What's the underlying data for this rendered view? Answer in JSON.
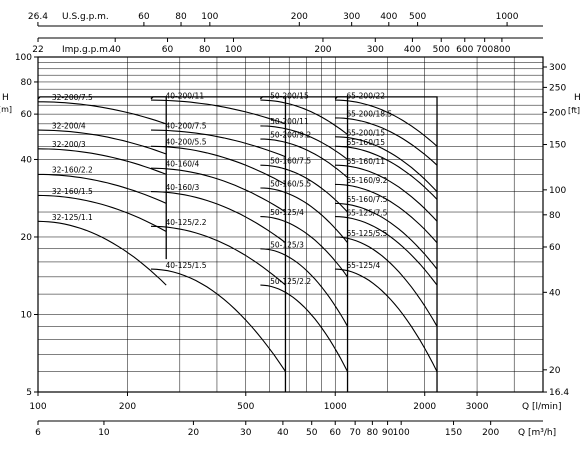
{
  "chart_data": {
    "type": "line",
    "x_scale": "log",
    "y_scale": "log",
    "xlim": [
      100,
      5000
    ],
    "ylim": [
      5,
      100
    ],
    "left_axis": {
      "label": "H [m]",
      "ticks": [
        {
          "v": 100,
          "label": "100"
        },
        {
          "v": 80,
          "label": "80"
        },
        {
          "v": 60,
          "label": "60"
        },
        {
          "v": 40,
          "label": "40"
        },
        {
          "v": 20,
          "label": "20"
        },
        {
          "v": 10,
          "label": "10"
        },
        {
          "v": 5,
          "label": "5"
        }
      ]
    },
    "right_axis": {
      "label": "H [ft]",
      "ticks": [
        {
          "v": 300,
          "label": "300"
        },
        {
          "v": 250,
          "label": "250"
        },
        {
          "v": 200,
          "label": "200"
        },
        {
          "v": 150,
          "label": "150"
        },
        {
          "v": 100,
          "label": "100"
        },
        {
          "v": 80,
          "label": "80"
        },
        {
          "v": 60,
          "label": "60"
        },
        {
          "v": 40,
          "label": "40"
        },
        {
          "v": 20,
          "label": "20"
        },
        {
          "v": 16.4,
          "label": "16.4"
        }
      ]
    },
    "x_axis_lmin": {
      "label": "Q [l/min]",
      "ticks": [
        {
          "v": 100,
          "label": "100"
        },
        {
          "v": 200,
          "label": "200"
        },
        {
          "v": 500,
          "label": "500"
        },
        {
          "v": 1000,
          "label": "1000"
        },
        {
          "v": 2000,
          "label": "2000"
        },
        {
          "v": 3000,
          "label": "3000"
        }
      ]
    },
    "x_axis_m3h": {
      "label": "Q [m³/h]",
      "ticks": [
        {
          "v": 6,
          "label": "6"
        },
        {
          "v": 10,
          "label": "10"
        },
        {
          "v": 20,
          "label": "20"
        },
        {
          "v": 30,
          "label": "30"
        },
        {
          "v": 40,
          "label": "40"
        },
        {
          "v": 50,
          "label": "50"
        },
        {
          "v": 60,
          "label": "60"
        },
        {
          "v": 70,
          "label": "70"
        },
        {
          "v": 80,
          "label": "80"
        },
        {
          "v": 90,
          "label": "90"
        },
        {
          "v": 100,
          "label": "100"
        },
        {
          "v": 150,
          "label": "150"
        },
        {
          "v": 200,
          "label": "200"
        }
      ]
    },
    "x_axis_usgpm": {
      "label": "U.S.g.p.m.",
      "ticks": [
        {
          "v": 26.4,
          "label": "26.4"
        },
        {
          "v": 60,
          "label": "60"
        },
        {
          "v": 80,
          "label": "80"
        },
        {
          "v": 100,
          "label": "100"
        },
        {
          "v": 200,
          "label": "200"
        },
        {
          "v": 300,
          "label": "300"
        },
        {
          "v": 400,
          "label": "400"
        },
        {
          "v": 500,
          "label": "500"
        },
        {
          "v": 1000,
          "label": "1000"
        }
      ]
    },
    "x_axis_impgpm": {
      "label": "Imp.g.p.m.",
      "ticks": [
        {
          "v": 22,
          "label": "22"
        },
        {
          "v": 40,
          "label": "40"
        },
        {
          "v": 60,
          "label": "60"
        },
        {
          "v": 80,
          "label": "80"
        },
        {
          "v": 100,
          "label": "100"
        },
        {
          "v": 200,
          "label": "200"
        },
        {
          "v": 300,
          "label": "300"
        },
        {
          "v": 400,
          "label": "400"
        },
        {
          "v": 500,
          "label": "500"
        },
        {
          "v": 600,
          "label": "600"
        },
        {
          "v": 700,
          "label": "700"
        },
        {
          "v": 800,
          "label": "800"
        }
      ]
    },
    "grid": true,
    "family_boxes": [
      {
        "q_min": 100,
        "q_max": 270,
        "h_bottom": 16.4,
        "h_top": 70
      },
      {
        "q_min": 240,
        "q_max": 680,
        "h_bottom": 5,
        "h_top": 70
      },
      {
        "q_min": 560,
        "q_max": 1100,
        "h_bottom": 5,
        "h_top": 70
      },
      {
        "q_min": 1000,
        "q_max": 2200,
        "h_bottom": 5,
        "h_top": 70
      }
    ],
    "series": [
      {
        "name": "32-200/7.5",
        "x": [
          100,
          270
        ],
        "y": [
          67,
          55
        ]
      },
      {
        "name": "32-200/4",
        "x": [
          100,
          270
        ],
        "y": [
          52,
          42
        ]
      },
      {
        "name": "32-200/3",
        "x": [
          100,
          270
        ],
        "y": [
          44,
          35
        ]
      },
      {
        "name": "32-160/2.2",
        "x": [
          100,
          270
        ],
        "y": [
          35,
          27
        ]
      },
      {
        "name": "32-160/1.5",
        "x": [
          100,
          270
        ],
        "y": [
          29,
          21
        ]
      },
      {
        "name": "32-125/1.1",
        "x": [
          100,
          270
        ],
        "y": [
          23,
          13
        ]
      },
      {
        "name": "40-200/11",
        "x": [
          240,
          680
        ],
        "y": [
          68,
          55
        ]
      },
      {
        "name": "40-200/7.5",
        "x": [
          240,
          680
        ],
        "y": [
          52,
          41
        ]
      },
      {
        "name": "40-200/5.5",
        "x": [
          240,
          680
        ],
        "y": [
          45,
          32
        ]
      },
      {
        "name": "40-160/4",
        "x": [
          240,
          680
        ],
        "y": [
          37,
          25
        ]
      },
      {
        "name": "40-160/3",
        "x": [
          240,
          680
        ],
        "y": [
          30,
          19
        ]
      },
      {
        "name": "40-125/2.2",
        "x": [
          240,
          680
        ],
        "y": [
          22,
          13
        ]
      },
      {
        "name": "40-125/1.5",
        "x": [
          240,
          680
        ],
        "y": [
          15,
          6
        ]
      },
      {
        "name": "50-200/15",
        "x": [
          560,
          1100
        ],
        "y": [
          68,
          50
        ]
      },
      {
        "name": "50-200/11",
        "x": [
          560,
          1100
        ],
        "y": [
          54,
          40
        ]
      },
      {
        "name": "50-200/9.2",
        "x": [
          560,
          1100
        ],
        "y": [
          48,
          34
        ]
      },
      {
        "name": "50-160/7.5",
        "x": [
          560,
          1100
        ],
        "y": [
          38,
          25
        ]
      },
      {
        "name": "50-160/5.5",
        "x": [
          560,
          1100
        ],
        "y": [
          31,
          19
        ]
      },
      {
        "name": "50-125/4",
        "x": [
          560,
          1100
        ],
        "y": [
          24,
          14
        ]
      },
      {
        "name": "50-125/3",
        "x": [
          560,
          1100
        ],
        "y": [
          18,
          9
        ]
      },
      {
        "name": "50-125/2.2",
        "x": [
          560,
          1100
        ],
        "y": [
          13,
          6
        ]
      },
      {
        "name": "65-200/22",
        "x": [
          1000,
          2200
        ],
        "y": [
          68,
          45
        ]
      },
      {
        "name": "65-200/18.5",
        "x": [
          1000,
          2200
        ],
        "y": [
          58,
          38
        ]
      },
      {
        "name": "65-200/15",
        "x": [
          1000,
          2200
        ],
        "y": [
          49,
          30
        ]
      },
      {
        "name": "65-160/15",
        "x": [
          1000,
          2200
        ],
        "y": [
          45,
          28
        ]
      },
      {
        "name": "65-160/11",
        "x": [
          1000,
          2200
        ],
        "y": [
          38,
          23
        ]
      },
      {
        "name": "65-160/9.2",
        "x": [
          1000,
          2200
        ],
        "y": [
          32,
          19
        ]
      },
      {
        "name": "65-160/7.5",
        "x": [
          1000,
          2200
        ],
        "y": [
          27,
          15
        ]
      },
      {
        "name": "65-125/7.5",
        "x": [
          1000,
          2200
        ],
        "y": [
          24,
          13
        ]
      },
      {
        "name": "65-125/5.5",
        "x": [
          1000,
          2200
        ],
        "y": [
          20,
          9
        ]
      },
      {
        "name": "65-125/4",
        "x": [
          1000,
          2200
        ],
        "y": [
          15,
          6
        ]
      }
    ]
  }
}
